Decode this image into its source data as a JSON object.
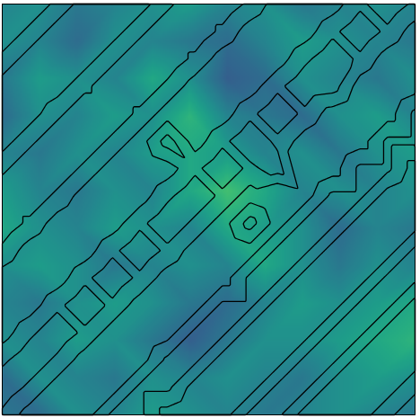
{
  "chart_data": {
    "type": "heatmap_contour",
    "tick_labels": false,
    "color": "viridis",
    "color_range": [
      0,
      1
    ],
    "contour_levels": [
      0.4,
      0.6
    ],
    "cells": [
      [
        0.45,
        0.5,
        0.4,
        0.45,
        0.5,
        0.55,
        0.45,
        0.5,
        0.4,
        0.45,
        0.5,
        0.45
      ],
      [
        0.5,
        0.45,
        0.35,
        0.5,
        0.45,
        0.4,
        0.35,
        0.45,
        0.55,
        0.5,
        0.45,
        0.4
      ],
      [
        0.4,
        0.55,
        0.5,
        0.45,
        0.6,
        0.5,
        0.3,
        0.35,
        0.5,
        0.45,
        0.4,
        0.5
      ],
      [
        0.35,
        0.5,
        0.45,
        0.55,
        0.5,
        0.65,
        0.45,
        0.4,
        0.35,
        0.5,
        0.55,
        0.45
      ],
      [
        0.45,
        0.4,
        0.5,
        0.45,
        0.55,
        0.6,
        0.55,
        0.45,
        0.5,
        0.4,
        0.5,
        0.55
      ],
      [
        0.55,
        0.45,
        0.4,
        0.5,
        0.45,
        0.6,
        0.7,
        0.6,
        0.45,
        0.5,
        0.45,
        0.5
      ],
      [
        0.6,
        0.5,
        0.45,
        0.55,
        0.5,
        0.45,
        0.6,
        0.55,
        0.5,
        0.35,
        0.45,
        0.4
      ],
      [
        0.5,
        0.55,
        0.5,
        0.4,
        0.45,
        0.5,
        0.45,
        0.6,
        0.5,
        0.4,
        0.5,
        0.45
      ],
      [
        0.45,
        0.4,
        0.5,
        0.55,
        0.5,
        0.4,
        0.35,
        0.45,
        0.55,
        0.5,
        0.55,
        0.6
      ],
      [
        0.5,
        0.45,
        0.55,
        0.5,
        0.4,
        0.3,
        0.4,
        0.5,
        0.5,
        0.55,
        0.6,
        0.65
      ],
      [
        0.35,
        0.5,
        0.45,
        0.4,
        0.5,
        0.45,
        0.5,
        0.45,
        0.4,
        0.5,
        0.55,
        0.5
      ],
      [
        0.4,
        0.35,
        0.5,
        0.45,
        0.55,
        0.5,
        0.45,
        0.4,
        0.45,
        0.5,
        0.45,
        0.4
      ]
    ],
    "contour_values": [
      [
        0.1,
        0.25,
        0.45,
        0.7,
        0.85,
        0.7,
        0.45,
        0.25,
        0.25,
        0.45,
        0.7,
        0.85,
        0.7,
        0.45,
        0.25,
        0.45
      ],
      [
        0.25,
        0.45,
        0.7,
        0.85,
        0.7,
        0.45,
        0.25,
        0.25,
        0.45,
        0.7,
        0.85,
        0.7,
        0.45,
        0.25,
        0.45,
        0.7
      ],
      [
        0.45,
        0.7,
        0.85,
        0.7,
        0.45,
        0.25,
        0.25,
        0.45,
        0.7,
        0.85,
        0.7,
        0.45,
        0.25,
        0.45,
        0.7,
        0.85
      ],
      [
        0.7,
        0.85,
        0.7,
        0.45,
        0.25,
        0.25,
        0.45,
        0.7,
        0.85,
        0.7,
        0.45,
        0.25,
        0.3,
        0.7,
        0.85,
        0.7
      ],
      [
        0.85,
        0.7,
        0.45,
        0.25,
        0.25,
        0.45,
        0.7,
        0.85,
        0.7,
        0.45,
        0.25,
        0.45,
        0.7,
        0.85,
        0.7,
        0.35
      ],
      [
        0.7,
        0.45,
        0.25,
        0.25,
        0.45,
        0.7,
        0.3,
        0.7,
        0.45,
        0.25,
        0.45,
        0.7,
        0.85,
        0.7,
        0.35,
        0.35
      ],
      [
        0.45,
        0.25,
        0.25,
        0.45,
        0.7,
        0.85,
        0.7,
        0.45,
        0.25,
        0.45,
        0.3,
        0.85,
        0.7,
        0.35,
        0.35,
        0.7
      ],
      [
        0.25,
        0.25,
        0.45,
        0.7,
        0.85,
        0.7,
        0.45,
        0.25,
        0.45,
        0.7,
        0.85,
        0.7,
        0.35,
        0.35,
        0.7,
        0.85
      ],
      [
        0.25,
        0.45,
        0.7,
        0.85,
        0.7,
        0.45,
        0.25,
        0.45,
        0.7,
        0.3,
        0.7,
        0.35,
        0.35,
        0.7,
        0.85,
        0.7
      ],
      [
        0.45,
        0.7,
        0.85,
        0.7,
        0.45,
        0.25,
        0.45,
        0.7,
        0.85,
        0.7,
        0.35,
        0.35,
        0.7,
        0.85,
        0.7,
        0.35
      ],
      [
        0.7,
        0.85,
        0.7,
        0.45,
        0.25,
        0.45,
        0.7,
        0.85,
        0.7,
        0.35,
        0.35,
        0.7,
        0.85,
        0.7,
        0.35,
        0.35
      ],
      [
        0.85,
        0.7,
        0.45,
        0.25,
        0.45,
        0.7,
        0.85,
        0.7,
        0.35,
        0.35,
        0.7,
        0.85,
        0.7,
        0.35,
        0.35,
        0.7
      ],
      [
        0.7,
        0.45,
        0.25,
        0.45,
        0.7,
        0.85,
        0.7,
        0.35,
        0.35,
        0.7,
        0.85,
        0.7,
        0.35,
        0.35,
        0.7,
        0.85
      ],
      [
        0.45,
        0.25,
        0.45,
        0.7,
        0.85,
        0.7,
        0.35,
        0.35,
        0.7,
        0.85,
        0.7,
        0.35,
        0.35,
        0.7,
        0.85,
        0.7
      ],
      [
        0.25,
        0.45,
        0.7,
        0.85,
        0.7,
        0.35,
        0.35,
        0.7,
        0.85,
        0.7,
        0.35,
        0.35,
        0.7,
        0.85,
        0.7,
        0.45
      ],
      [
        0.45,
        0.7,
        0.85,
        0.7,
        0.35,
        0.35,
        0.7,
        0.85,
        0.7,
        0.35,
        0.35,
        0.7,
        0.85,
        0.7,
        0.45,
        0.25
      ]
    ]
  }
}
